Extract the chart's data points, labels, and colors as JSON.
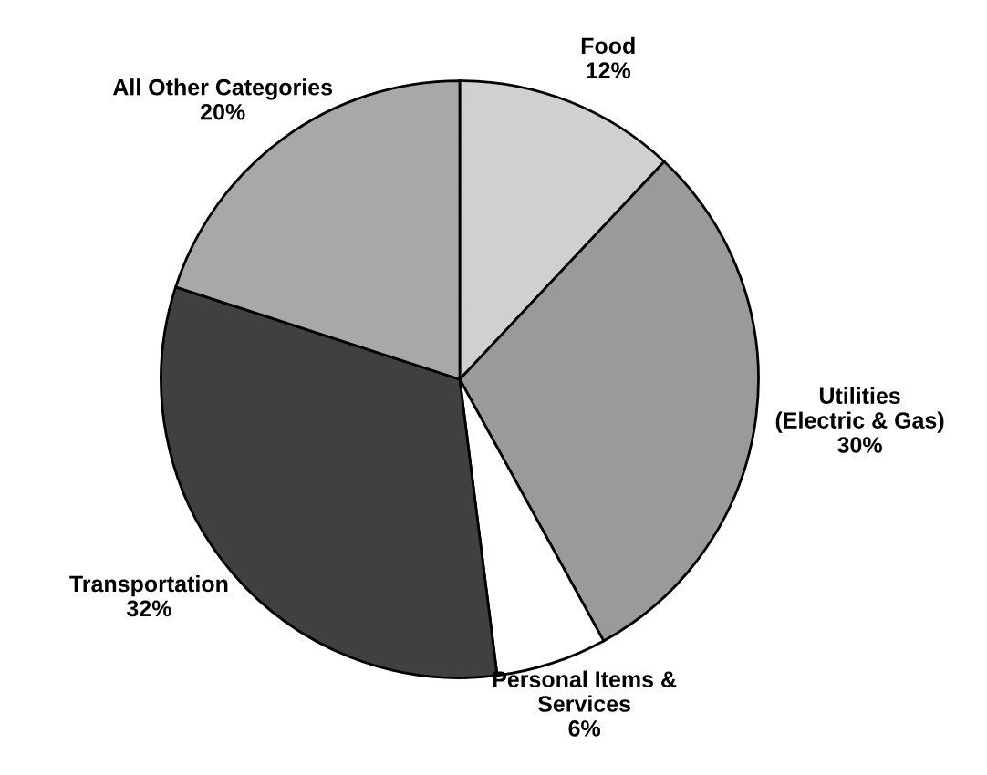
{
  "chart_data": {
    "type": "pie",
    "categories": [
      "Food",
      "Utilities\n(Electric & Gas)",
      "Personal Items &\nServices",
      "Transportation",
      "All Other Categories"
    ],
    "values": [
      12,
      30,
      6,
      32,
      20
    ],
    "value_labels": [
      "12%",
      "30%",
      "6%",
      "32%",
      "20%"
    ],
    "colors": [
      "#d0d0d0",
      "#9a9a9a",
      "#ffffff",
      "#404040",
      "#a8a8a8"
    ],
    "legend": false
  }
}
